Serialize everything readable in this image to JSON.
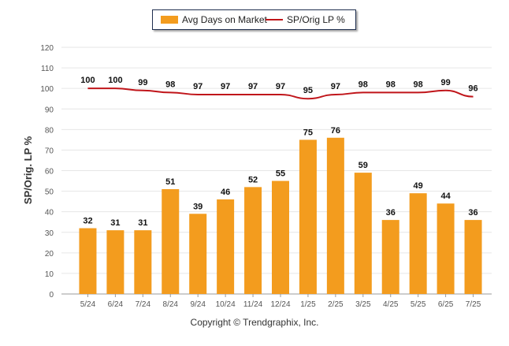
{
  "chart_data": {
    "type": "bar",
    "categories": [
      "5/24",
      "6/24",
      "7/24",
      "8/24",
      "9/24",
      "10/24",
      "11/24",
      "12/24",
      "1/25",
      "2/25",
      "3/25",
      "4/25",
      "5/25",
      "6/25",
      "7/25"
    ],
    "series": [
      {
        "name": "Avg Days on Market",
        "type": "bar",
        "color": "#f39c1e",
        "values": [
          32,
          31,
          31,
          51,
          39,
          46,
          52,
          55,
          75,
          76,
          59,
          36,
          49,
          44,
          36
        ]
      },
      {
        "name": "SP/Orig LP %",
        "type": "line",
        "color": "#c0151a",
        "values": [
          100,
          100,
          99,
          98,
          97,
          97,
          97,
          97,
          95,
          97,
          98,
          98,
          98,
          99,
          96
        ]
      }
    ],
    "title": "",
    "xlabel": "",
    "ylabel": "SP/Orig. LP %",
    "ylim": [
      0,
      120
    ],
    "yticks": [
      0,
      10,
      20,
      30,
      40,
      50,
      60,
      70,
      80,
      90,
      100,
      110,
      120
    ],
    "grid": true,
    "legend_position": "top-center"
  },
  "footer": {
    "copyright": "Copyright © Trendgraphix, Inc."
  }
}
